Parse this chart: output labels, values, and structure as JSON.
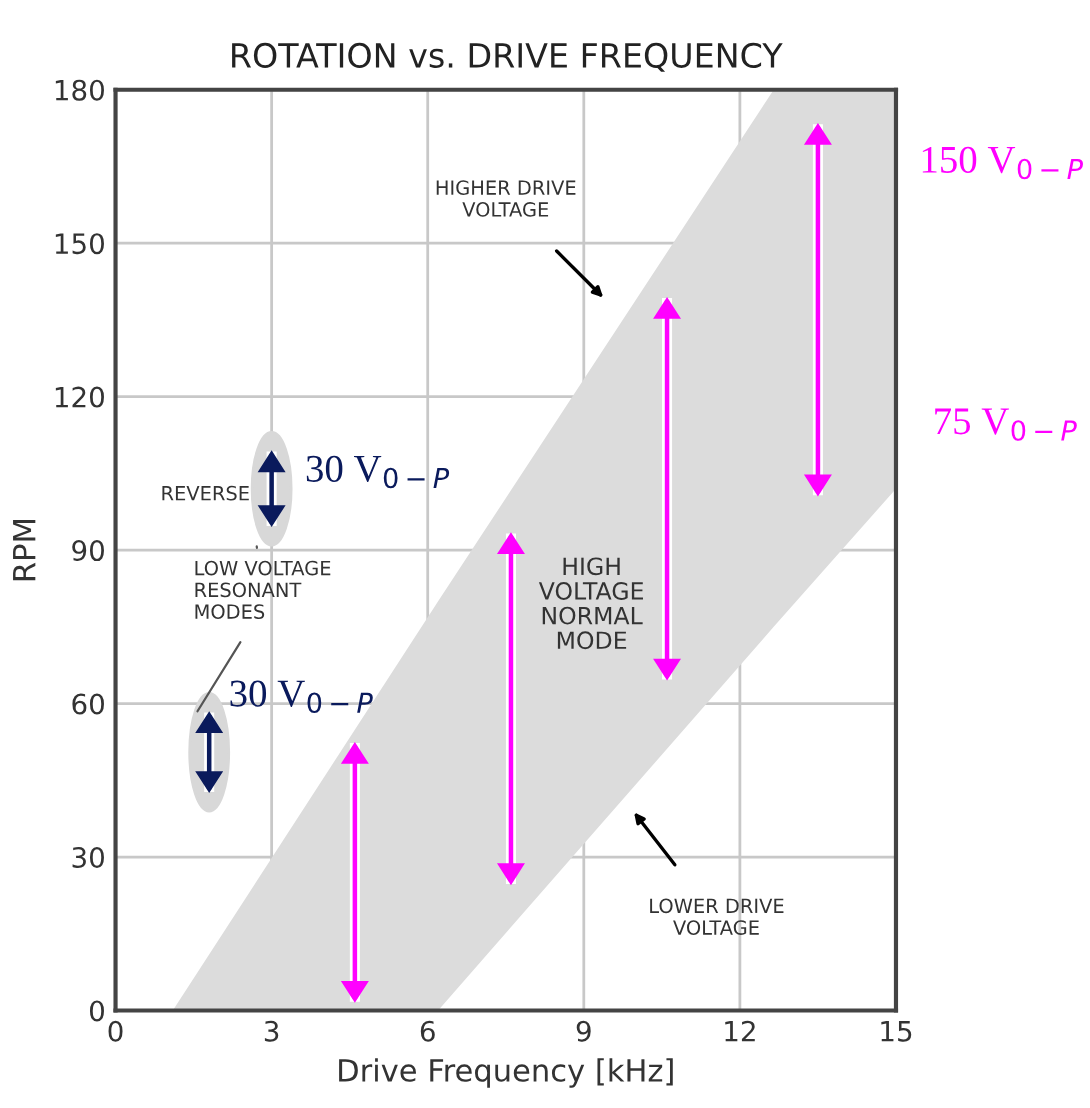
{
  "chart_data": {
    "type": "bar",
    "title": "ROTATION vs. DRIVE FREQUENCY",
    "xlabel": "Drive Frequency [kHz]",
    "ylabel": "RPM",
    "xlim": [
      0,
      15
    ],
    "xticks": [
      0,
      3,
      6,
      9,
      12,
      15
    ],
    "ylim": [
      0,
      180
    ],
    "yticks": [
      0,
      30,
      60,
      90,
      120,
      150,
      180
    ],
    "grid": true,
    "series": [
      {
        "type": "line",
        "color": "#dcdcdc",
        "x": [
          1.1,
          6.2,
          12.65,
          15
        ],
        "values": [
          null,
          null,
          null,
          null
        ],
        "lower": [
          0,
          0,
          75,
          102
        ],
        "upper": [
          0,
          80,
          180,
          180
        ]
      },
      {
        "color": "#ff00ff",
        "x": [
          4.6,
          7.6,
          10.6,
          13.5
        ],
        "base": [
          2,
          25,
          65,
          101
        ],
        "values": [
          50,
          68,
          74,
          72
        ]
      },
      {
        "color": "#0a1a5c",
        "x": [
          3,
          1.8
        ],
        "base": [
          95,
          43
        ],
        "values": [
          14,
          15
        ]
      }
    ],
    "annotations": [
      "HIGHER DRIVE\nVOLTAGE",
      "LOWER DRIVE\nVOLTAGE",
      "HIGH\nVOLTAGE\nNORMAL\nMODE",
      "REVERSE",
      "LOW VOLTAGE\nRESONANT\nMODES",
      {
        "text": "30 V$_{0−P}$",
        "x": 3,
        "y": 109
      },
      {
        "text": "30 V$_{0−P}$",
        "x": 1.8,
        "y": 58
      },
      "150 V$_{0−P}$",
      "75 V$_{0−P}$"
    ]
  }
}
